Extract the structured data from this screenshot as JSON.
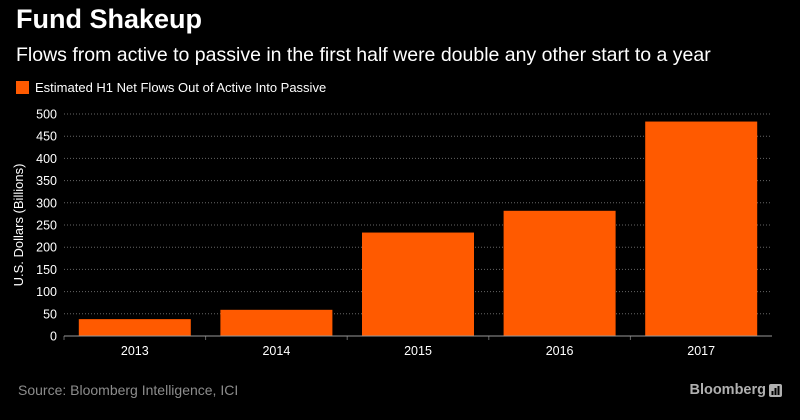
{
  "header": {
    "title": "Fund Shakeup",
    "subtitle": "Flows from active to passive in the first half were double any other start to a year"
  },
  "footer": {
    "source": "Source: Bloomberg Intelligence, ICI",
    "brand": "Bloomberg",
    "brand_icon": "bar-chart-icon"
  },
  "colors": {
    "background": "#000000",
    "bar": "#ff5a00",
    "grid": "#666666",
    "text": "#ffffff",
    "muted": "#8c8c8c"
  },
  "chart_data": {
    "type": "bar",
    "categories": [
      "2013",
      "2014",
      "2015",
      "2016",
      "2017"
    ],
    "series": [
      {
        "name": "Estimated H1 Net Flows Out of Active Into Passive",
        "values": [
          38,
          59,
          233,
          282,
          483
        ]
      }
    ],
    "title": "Fund Shakeup",
    "subtitle": "Flows from active to passive in the first half were double any other start to a year",
    "xlabel": "",
    "ylabel": "U.S. Dollars (Billions)",
    "ylim": [
      0,
      500
    ],
    "yticks": [
      0,
      50,
      100,
      150,
      200,
      250,
      300,
      350,
      400,
      450,
      500
    ],
    "grid": true,
    "legend": "top-left"
  }
}
